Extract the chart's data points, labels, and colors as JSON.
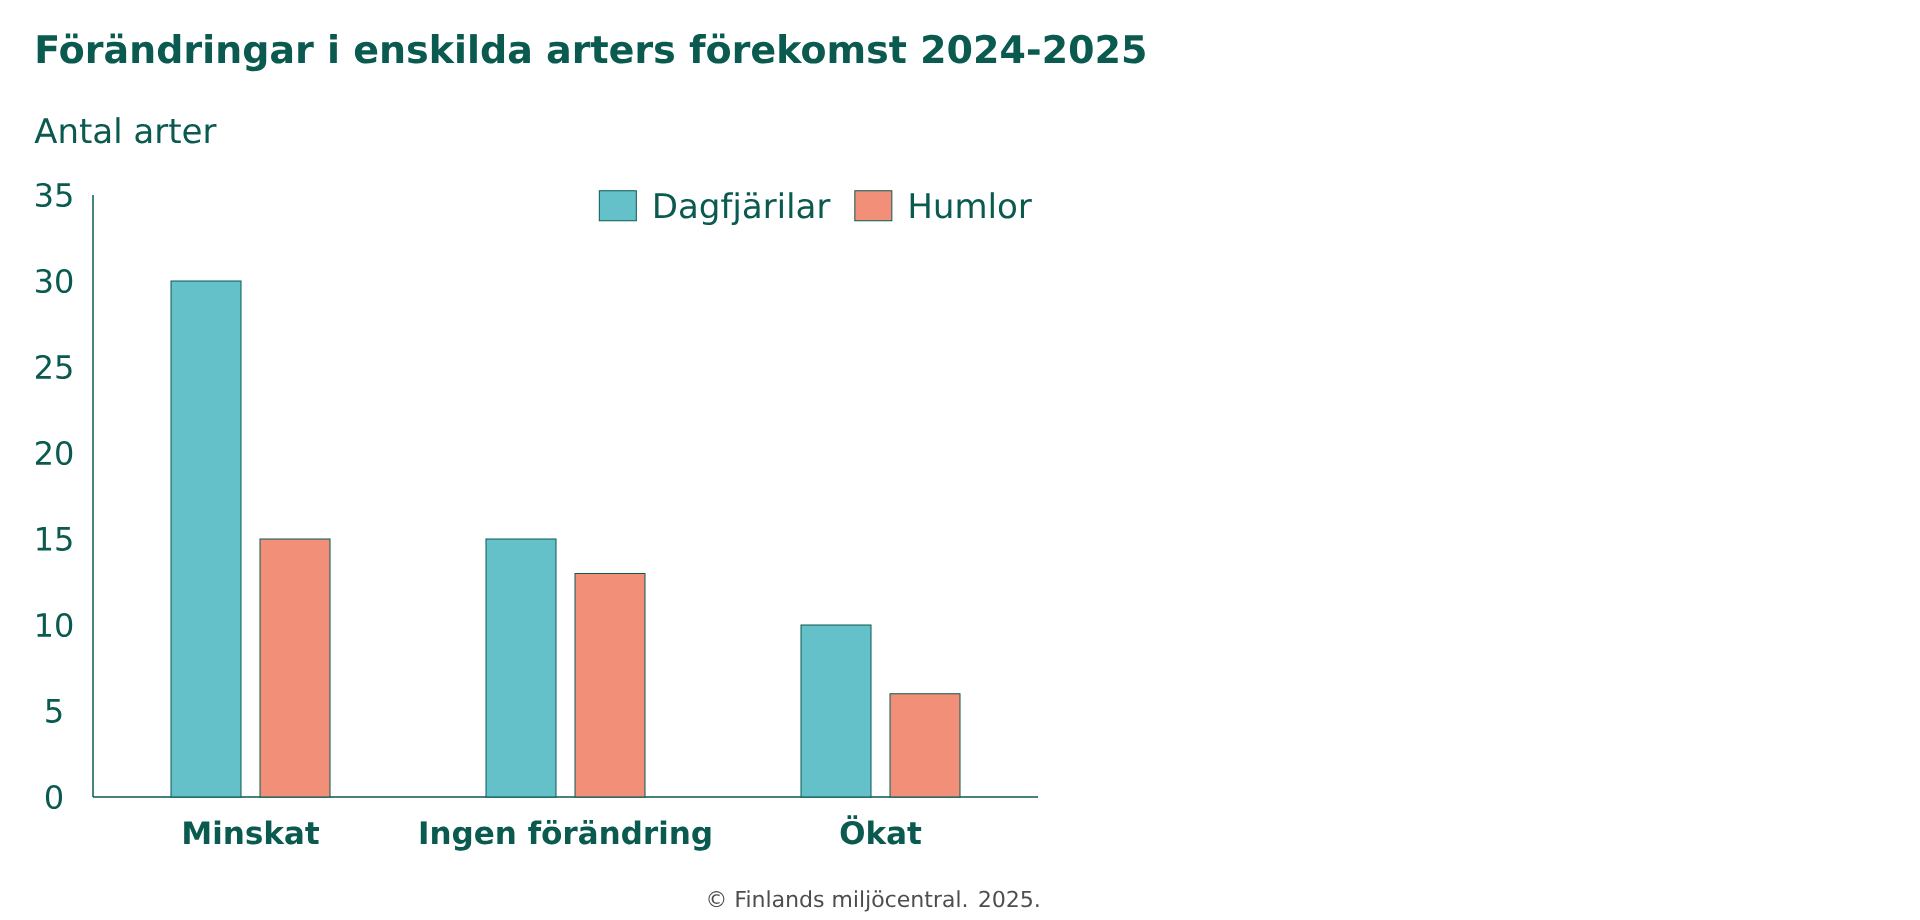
{
  "chart_data": {
    "type": "bar",
    "title": "Förändringar i enskilda arters förekomst 2024-2025",
    "ylabel": "Antal arter",
    "categories": [
      "Minskat",
      "Ingen förändring",
      "Ökat"
    ],
    "series": [
      {
        "name": "Dagfjärilar",
        "color": "#64c1ca",
        "values": [
          30,
          15,
          10
        ]
      },
      {
        "name": "Humlor",
        "color": "#f28f79",
        "values": [
          15,
          13,
          6
        ]
      }
    ],
    "ylim": [
      0,
      35
    ],
    "yticks": [
      0,
      5,
      10,
      15,
      20,
      25,
      30,
      35
    ],
    "legend": "top right",
    "annotations": [
      "© Finlands miljöcentral. 2025."
    ]
  }
}
